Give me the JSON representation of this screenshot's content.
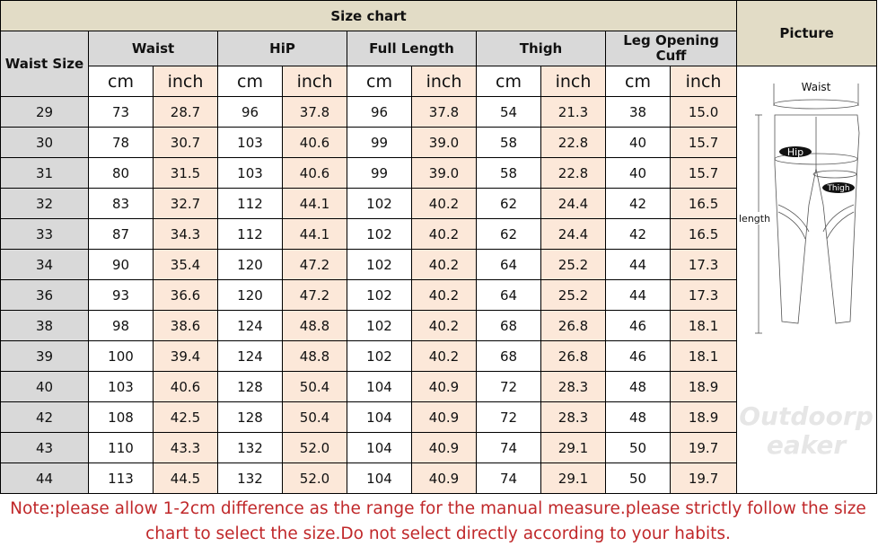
{
  "title": "Size chart",
  "picture_header": "Picture",
  "size_header": "Waist Size",
  "groups": [
    "Waist",
    "HiP",
    "Full Length",
    "Thigh",
    "Leg Opening Cuff"
  ],
  "units": {
    "cm": "cm",
    "inch": "inch"
  },
  "rows": [
    [
      "29",
      "73",
      "28.7",
      "96",
      "37.8",
      "96",
      "37.8",
      "54",
      "21.3",
      "38",
      "15.0"
    ],
    [
      "30",
      "78",
      "30.7",
      "103",
      "40.6",
      "99",
      "39.0",
      "58",
      "22.8",
      "40",
      "15.7"
    ],
    [
      "31",
      "80",
      "31.5",
      "103",
      "40.6",
      "99",
      "39.0",
      "58",
      "22.8",
      "40",
      "15.7"
    ],
    [
      "32",
      "83",
      "32.7",
      "112",
      "44.1",
      "102",
      "40.2",
      "62",
      "24.4",
      "42",
      "16.5"
    ],
    [
      "33",
      "87",
      "34.3",
      "112",
      "44.1",
      "102",
      "40.2",
      "62",
      "24.4",
      "42",
      "16.5"
    ],
    [
      "34",
      "90",
      "35.4",
      "120",
      "47.2",
      "102",
      "40.2",
      "64",
      "25.2",
      "44",
      "17.3"
    ],
    [
      "36",
      "93",
      "36.6",
      "120",
      "47.2",
      "102",
      "40.2",
      "64",
      "25.2",
      "44",
      "17.3"
    ],
    [
      "38",
      "98",
      "38.6",
      "124",
      "48.8",
      "102",
      "40.2",
      "68",
      "26.8",
      "46",
      "18.1"
    ],
    [
      "39",
      "100",
      "39.4",
      "124",
      "48.8",
      "102",
      "40.2",
      "68",
      "26.8",
      "46",
      "18.1"
    ],
    [
      "40",
      "103",
      "40.6",
      "128",
      "50.4",
      "104",
      "40.9",
      "72",
      "28.3",
      "48",
      "18.9"
    ],
    [
      "42",
      "108",
      "42.5",
      "128",
      "50.4",
      "104",
      "40.9",
      "72",
      "28.3",
      "48",
      "18.9"
    ],
    [
      "43",
      "110",
      "43.3",
      "132",
      "52.0",
      "104",
      "40.9",
      "74",
      "29.1",
      "50",
      "19.7"
    ],
    [
      "44",
      "113",
      "44.5",
      "132",
      "52.0",
      "104",
      "40.9",
      "74",
      "29.1",
      "50",
      "19.7"
    ]
  ],
  "diagram_labels": {
    "waist": "Waist",
    "hip": "Hip",
    "thigh": "Thigh",
    "length": "length"
  },
  "watermark": "Outdoorpeaker",
  "note": "Note:please allow 1-2cm difference as the range for the manual measure.please strictly follow the size chart to select the size.Do not select directly according to your habits.",
  "colors": {
    "title_bg": "#e2dcc6",
    "header_bg": "#d9d9d9",
    "inch_bg": "#fce8d9",
    "note": "#c0282a"
  }
}
